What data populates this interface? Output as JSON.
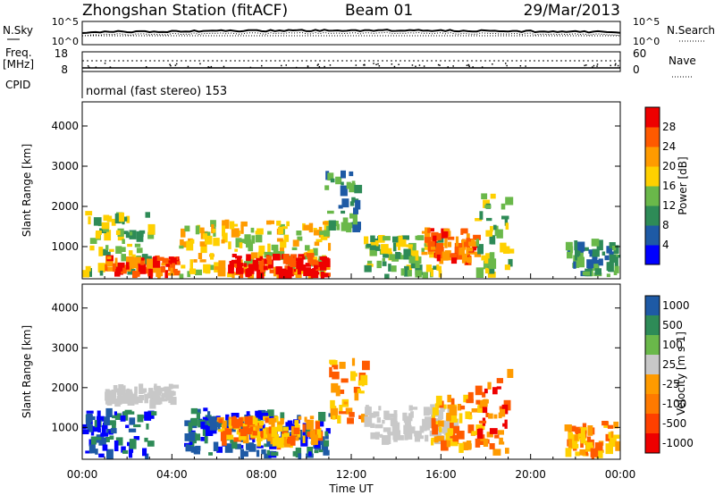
{
  "header": {
    "station": "Zhongshan Station (fitACF)",
    "beam": "Beam 01",
    "date": "29/Mar/2013"
  },
  "noise_panel": {
    "left_label": "N.Sky",
    "right_label": "N.Search",
    "top_tick": "10^5",
    "bottom_tick": "10^0"
  },
  "freq_panel": {
    "left_label_1": "Freq.",
    "left_label_2": "[MHz]",
    "left_ticks": [
      "18",
      "8"
    ],
    "right_label": "Nave",
    "right_ticks": [
      "60",
      "0"
    ]
  },
  "cpid": {
    "label": "CPID",
    "value": "normal (fast stereo) 153"
  },
  "colors": {
    "scale": [
      "#0000ff",
      "#1e5aa5",
      "#2e8b57",
      "#6ab84a",
      "#ffd000",
      "#ff9b00",
      "#ff5a00",
      "#ee0000"
    ],
    "velocity_ground": "#c8c8c8"
  },
  "chart_data": [
    {
      "type": "heatmap",
      "parameter": "Power",
      "xlabel": "",
      "ylabel": "Slant Range [km]",
      "y_ticks": [
        "1000",
        "2000",
        "3000",
        "4000"
      ],
      "ylim": [
        200,
        4600
      ],
      "xlim": [
        "00:00",
        "24:00"
      ],
      "colorbar": {
        "label": "Power [dB]",
        "ticks": [
          "4",
          "8",
          "12",
          "16",
          "20",
          "24",
          "28"
        ],
        "range": [
          0,
          32
        ]
      },
      "regions": [
        {
          "t0": 0.0,
          "t1": 3.0,
          "r0": 250,
          "r1": 1900,
          "level": 3
        },
        {
          "t0": 1.0,
          "t1": 4.2,
          "r0": 350,
          "r1": 800,
          "level": 6
        },
        {
          "t0": 4.3,
          "t1": 11.0,
          "r0": 300,
          "r1": 1700,
          "level": 4
        },
        {
          "t0": 6.5,
          "t1": 10.8,
          "r0": 300,
          "r1": 850,
          "level": 7
        },
        {
          "t0": 10.8,
          "t1": 12.2,
          "r0": 1500,
          "r1": 2900,
          "level": 2
        },
        {
          "t0": 12.5,
          "t1": 16.0,
          "r0": 250,
          "r1": 1300,
          "level": 3
        },
        {
          "t0": 15.0,
          "t1": 17.5,
          "r0": 700,
          "r1": 1500,
          "level": 6
        },
        {
          "t0": 17.5,
          "t1": 19.0,
          "r0": 300,
          "r1": 2400,
          "level": 3
        },
        {
          "t0": 21.5,
          "t1": 23.8,
          "r0": 250,
          "r1": 1200,
          "level": 2
        }
      ]
    },
    {
      "type": "heatmap",
      "parameter": "Velocity",
      "xlabel": "Time UT",
      "ylabel": "Slant Range [km]",
      "y_ticks": [
        "1000",
        "2000",
        "3000",
        "4000"
      ],
      "ylim": [
        200,
        4600
      ],
      "x_ticks": [
        "00:00",
        "04:00",
        "08:00",
        "12:00",
        "16:00",
        "20:00",
        "00:00"
      ],
      "xlim": [
        "00:00",
        "24:00"
      ],
      "colorbar": {
        "label": "Velocity [m s-1]",
        "ticks": [
          "1000",
          "500",
          "100",
          "25",
          "-25",
          "-100",
          "-500",
          "-1000"
        ]
      },
      "regions": [
        {
          "t0": 0.0,
          "t1": 3.0,
          "r0": 300,
          "r1": 1500,
          "level": 1
        },
        {
          "t0": 1.0,
          "t1": 4.0,
          "r0": 1700,
          "r1": 2100,
          "level": "ground"
        },
        {
          "t0": 4.5,
          "t1": 11.0,
          "r0": 300,
          "r1": 1500,
          "level": 1
        },
        {
          "t0": 6.0,
          "t1": 10.5,
          "r0": 700,
          "r1": 1300,
          "level": 5
        },
        {
          "t0": 11.0,
          "t1": 12.5,
          "r0": 1200,
          "r1": 2800,
          "level": 5
        },
        {
          "t0": 12.5,
          "t1": 16.5,
          "r0": 700,
          "r1": 1600,
          "level": "ground"
        },
        {
          "t0": 15.5,
          "t1": 18.0,
          "r0": 600,
          "r1": 1900,
          "level": 5
        },
        {
          "t0": 17.5,
          "t1": 19.0,
          "r0": 300,
          "r1": 2500,
          "level": 6
        },
        {
          "t0": 21.5,
          "t1": 23.8,
          "r0": 300,
          "r1": 1200,
          "level": 5
        }
      ]
    }
  ]
}
